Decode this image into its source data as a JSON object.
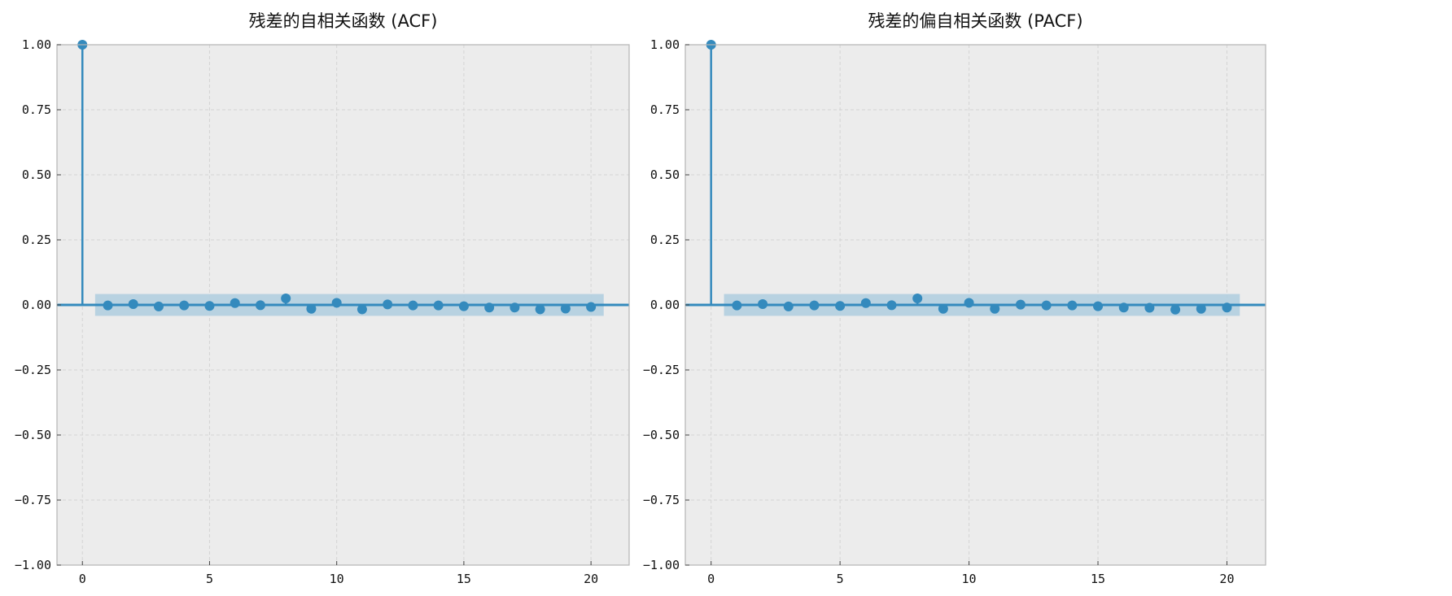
{
  "chart_data": [
    {
      "type": "stem",
      "title": "残差的自相关函数 (ACF)",
      "xlabel": "",
      "ylabel": "",
      "xlim": [
        -1,
        21.5
      ],
      "ylim": [
        -1.0,
        1.0
      ],
      "x_ticks": [
        "0",
        "5",
        "10",
        "15",
        "20"
      ],
      "y_ticks": [
        "−1.00",
        "−0.75",
        "−0.50",
        "−0.25",
        "0.00",
        "0.25",
        "0.50",
        "0.75",
        "1.00"
      ],
      "grid": true,
      "lags": [
        0,
        1,
        2,
        3,
        4,
        5,
        6,
        7,
        8,
        9,
        10,
        11,
        12,
        13,
        14,
        15,
        16,
        17,
        18,
        19,
        20
      ],
      "values": [
        1.0,
        -0.002,
        0.003,
        -0.006,
        -0.002,
        -0.004,
        0.007,
        -0.001,
        0.025,
        -0.015,
        0.008,
        -0.017,
        0.002,
        -0.002,
        -0.002,
        -0.005,
        -0.01,
        -0.01,
        -0.017,
        -0.014,
        -0.008
      ],
      "confidence_band": {
        "lag_start": 0.5,
        "lag_end": 20.5,
        "lower": -0.042,
        "upper": 0.042
      }
    },
    {
      "type": "stem",
      "title": "残差的偏自相关函数 (PACF)",
      "xlabel": "",
      "ylabel": "",
      "xlim": [
        -1,
        21.5
      ],
      "ylim": [
        -1.0,
        1.0
      ],
      "x_ticks": [
        "0",
        "5",
        "10",
        "15",
        "20"
      ],
      "y_ticks": [
        "−1.00",
        "−0.75",
        "−0.50",
        "−0.25",
        "0.00",
        "0.25",
        "0.50",
        "0.75",
        "1.00"
      ],
      "grid": true,
      "lags": [
        0,
        1,
        2,
        3,
        4,
        5,
        6,
        7,
        8,
        9,
        10,
        11,
        12,
        13,
        14,
        15,
        16,
        17,
        18,
        19,
        20
      ],
      "values": [
        1.0,
        -0.002,
        0.003,
        -0.006,
        -0.002,
        -0.004,
        0.007,
        -0.001,
        0.025,
        -0.015,
        0.008,
        -0.015,
        0.001,
        -0.002,
        -0.002,
        -0.005,
        -0.01,
        -0.011,
        -0.018,
        -0.015,
        -0.01
      ],
      "confidence_band": {
        "lag_start": 0.5,
        "lag_end": 20.5,
        "lower": -0.042,
        "upper": 0.042
      }
    }
  ],
  "colors": {
    "stem": "#348abd",
    "band": "#b3cfe0",
    "plot_bg": "#ececec",
    "grid": "#d4d4d4",
    "axes_edge": "#b5b5b5",
    "tick_text": "#111111"
  }
}
